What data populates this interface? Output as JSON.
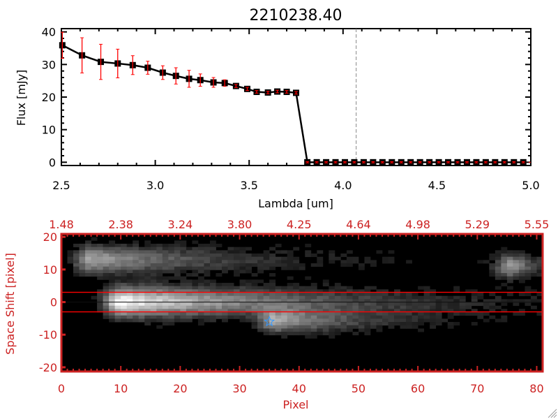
{
  "title": "2210238.40",
  "colors": {
    "axis_top": "#000000",
    "axis_bottom": "#cc2222",
    "error": "#ff0000",
    "star": "#3399ff"
  },
  "chart_data": [
    {
      "type": "line",
      "title": "2210238.40",
      "xlabel": "Lambda [um]",
      "ylabel": "Flux [mJy]",
      "xlim": [
        2.5,
        5.0
      ],
      "ylim": [
        -1,
        41
      ],
      "xticks": [
        "2.5",
        "3.0",
        "3.5",
        "4.0",
        "4.5",
        "5.0"
      ],
      "xtick_values": [
        2.5,
        3.0,
        3.5,
        4.0,
        4.5,
        5.0
      ],
      "yticks": [
        "0",
        "10",
        "20",
        "30",
        "40"
      ],
      "ytick_values": [
        0,
        10,
        20,
        30,
        40
      ],
      "marker_line": 4.07,
      "series": [
        {
          "name": "Flux",
          "x": [
            2.505,
            2.61,
            2.71,
            2.8,
            2.88,
            2.96,
            3.04,
            3.11,
            3.18,
            3.24,
            3.31,
            3.37,
            3.43,
            3.49,
            3.54,
            3.6,
            3.65,
            3.7,
            3.75,
            3.81,
            3.86,
            3.91,
            3.96,
            4.01,
            4.06,
            4.11,
            4.16,
            4.21,
            4.26,
            4.31,
            4.36,
            4.41,
            4.46,
            4.51,
            4.56,
            4.61,
            4.66,
            4.71,
            4.76,
            4.81,
            4.86,
            4.91,
            4.96
          ],
          "y": [
            35.9,
            32.8,
            30.8,
            30.3,
            29.8,
            29.0,
            27.5,
            26.5,
            25.6,
            25.2,
            24.5,
            24.3,
            23.4,
            22.5,
            21.6,
            21.4,
            21.7,
            21.6,
            21.3,
            0,
            0,
            0,
            0,
            0,
            0,
            0,
            0,
            0,
            0,
            0,
            0,
            0,
            0,
            0,
            0,
            0,
            0,
            0,
            0,
            0,
            0,
            0,
            0
          ],
          "err": [
            4.0,
            5.4,
            5.4,
            4.4,
            2.9,
            2.0,
            2.1,
            2.5,
            2.6,
            1.9,
            1.5,
            1.0,
            0.5,
            0.5,
            0.4,
            0.4,
            0.4,
            0.4,
            0.4,
            0.2,
            0.2,
            0.2,
            0.2,
            0.2,
            0.2,
            0.2,
            0.2,
            0.2,
            0.2,
            0.2,
            0.2,
            0.2,
            0.2,
            0.2,
            0.2,
            0.2,
            0.2,
            0.2,
            0.2,
            0.2,
            0.2,
            0.2,
            0.2
          ]
        }
      ]
    },
    {
      "type": "heatmap",
      "xlabel": "Pixel",
      "ylabel": "Space Shift [pixel]",
      "xlim": [
        0,
        81
      ],
      "ylim": [
        -21.3,
        20.9
      ],
      "xticks": [
        "0",
        "10",
        "20",
        "30",
        "40",
        "50",
        "60",
        "70",
        "80"
      ],
      "xtick_values": [
        0,
        10,
        20,
        30,
        40,
        50,
        60,
        70,
        80
      ],
      "yticks": [
        "20",
        "10",
        "0",
        "-10",
        "-20"
      ],
      "ytick_values": [
        20,
        10,
        0,
        -10,
        -20
      ],
      "top_axis_label_values": [
        "1.48",
        "2.38",
        "3.24",
        "3.80",
        "4.25",
        "4.64",
        "4.98",
        "5.29",
        "5.55"
      ],
      "aperture_lines": [
        3,
        -3
      ],
      "center_line": 0,
      "star": {
        "pixel": 35,
        "shift": -6
      },
      "features": [
        {
          "pixel": 10,
          "shift": 0,
          "amp": 1.0,
          "len": 30,
          "width": 3.2
        },
        {
          "pixel": 5,
          "shift": 13,
          "amp": 0.65,
          "len": 22,
          "width": 3
        },
        {
          "pixel": 36,
          "shift": -6,
          "amp": 0.6,
          "len": 14,
          "width": 2.5
        },
        {
          "pixel": 76,
          "shift": 11,
          "amp": 0.6,
          "len": 4,
          "width": 2.5
        }
      ]
    }
  ]
}
